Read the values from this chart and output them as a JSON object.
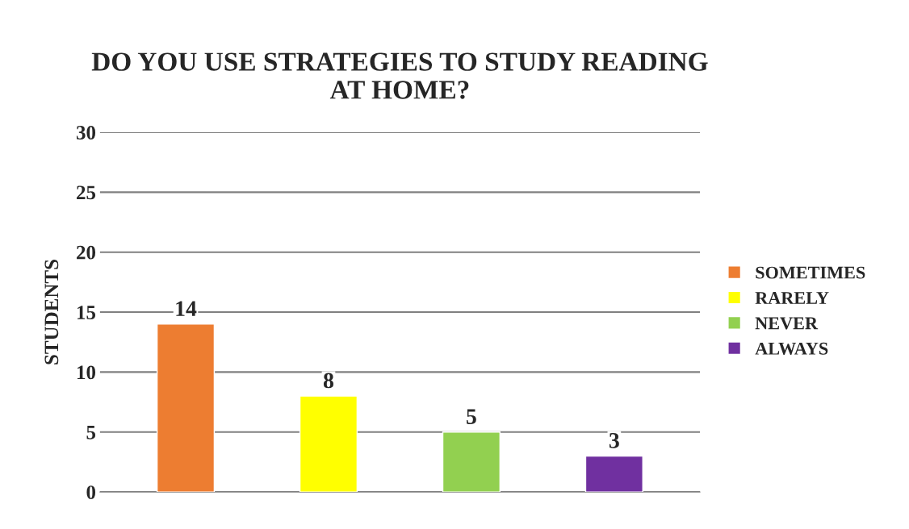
{
  "chart_data": {
    "type": "bar",
    "title": "DO YOU USE STRATEGIES TO STUDY READING\nAT HOME?",
    "ylabel": "STUDENTS",
    "categories": [
      null,
      null,
      null,
      null
    ],
    "series": [
      {
        "name": "SOMETIMES",
        "color": "#ed7d31",
        "values": [
          14,
          null,
          null,
          null
        ]
      },
      {
        "name": "RARELY",
        "color": "#ffff00",
        "values": [
          null,
          8,
          null,
          null
        ]
      },
      {
        "name": "NEVER",
        "color": "#92d050",
        "values": [
          null,
          null,
          5,
          null
        ]
      },
      {
        "name": "ALWAYS",
        "color": "#7030a0",
        "values": [
          null,
          null,
          null,
          3
        ]
      }
    ],
    "ylim": [
      0,
      30
    ],
    "yticks": [
      0,
      5,
      10,
      15,
      20,
      25,
      30
    ],
    "grid": "y",
    "data_labels": true,
    "legend": "right",
    "tick_labels": "y"
  }
}
